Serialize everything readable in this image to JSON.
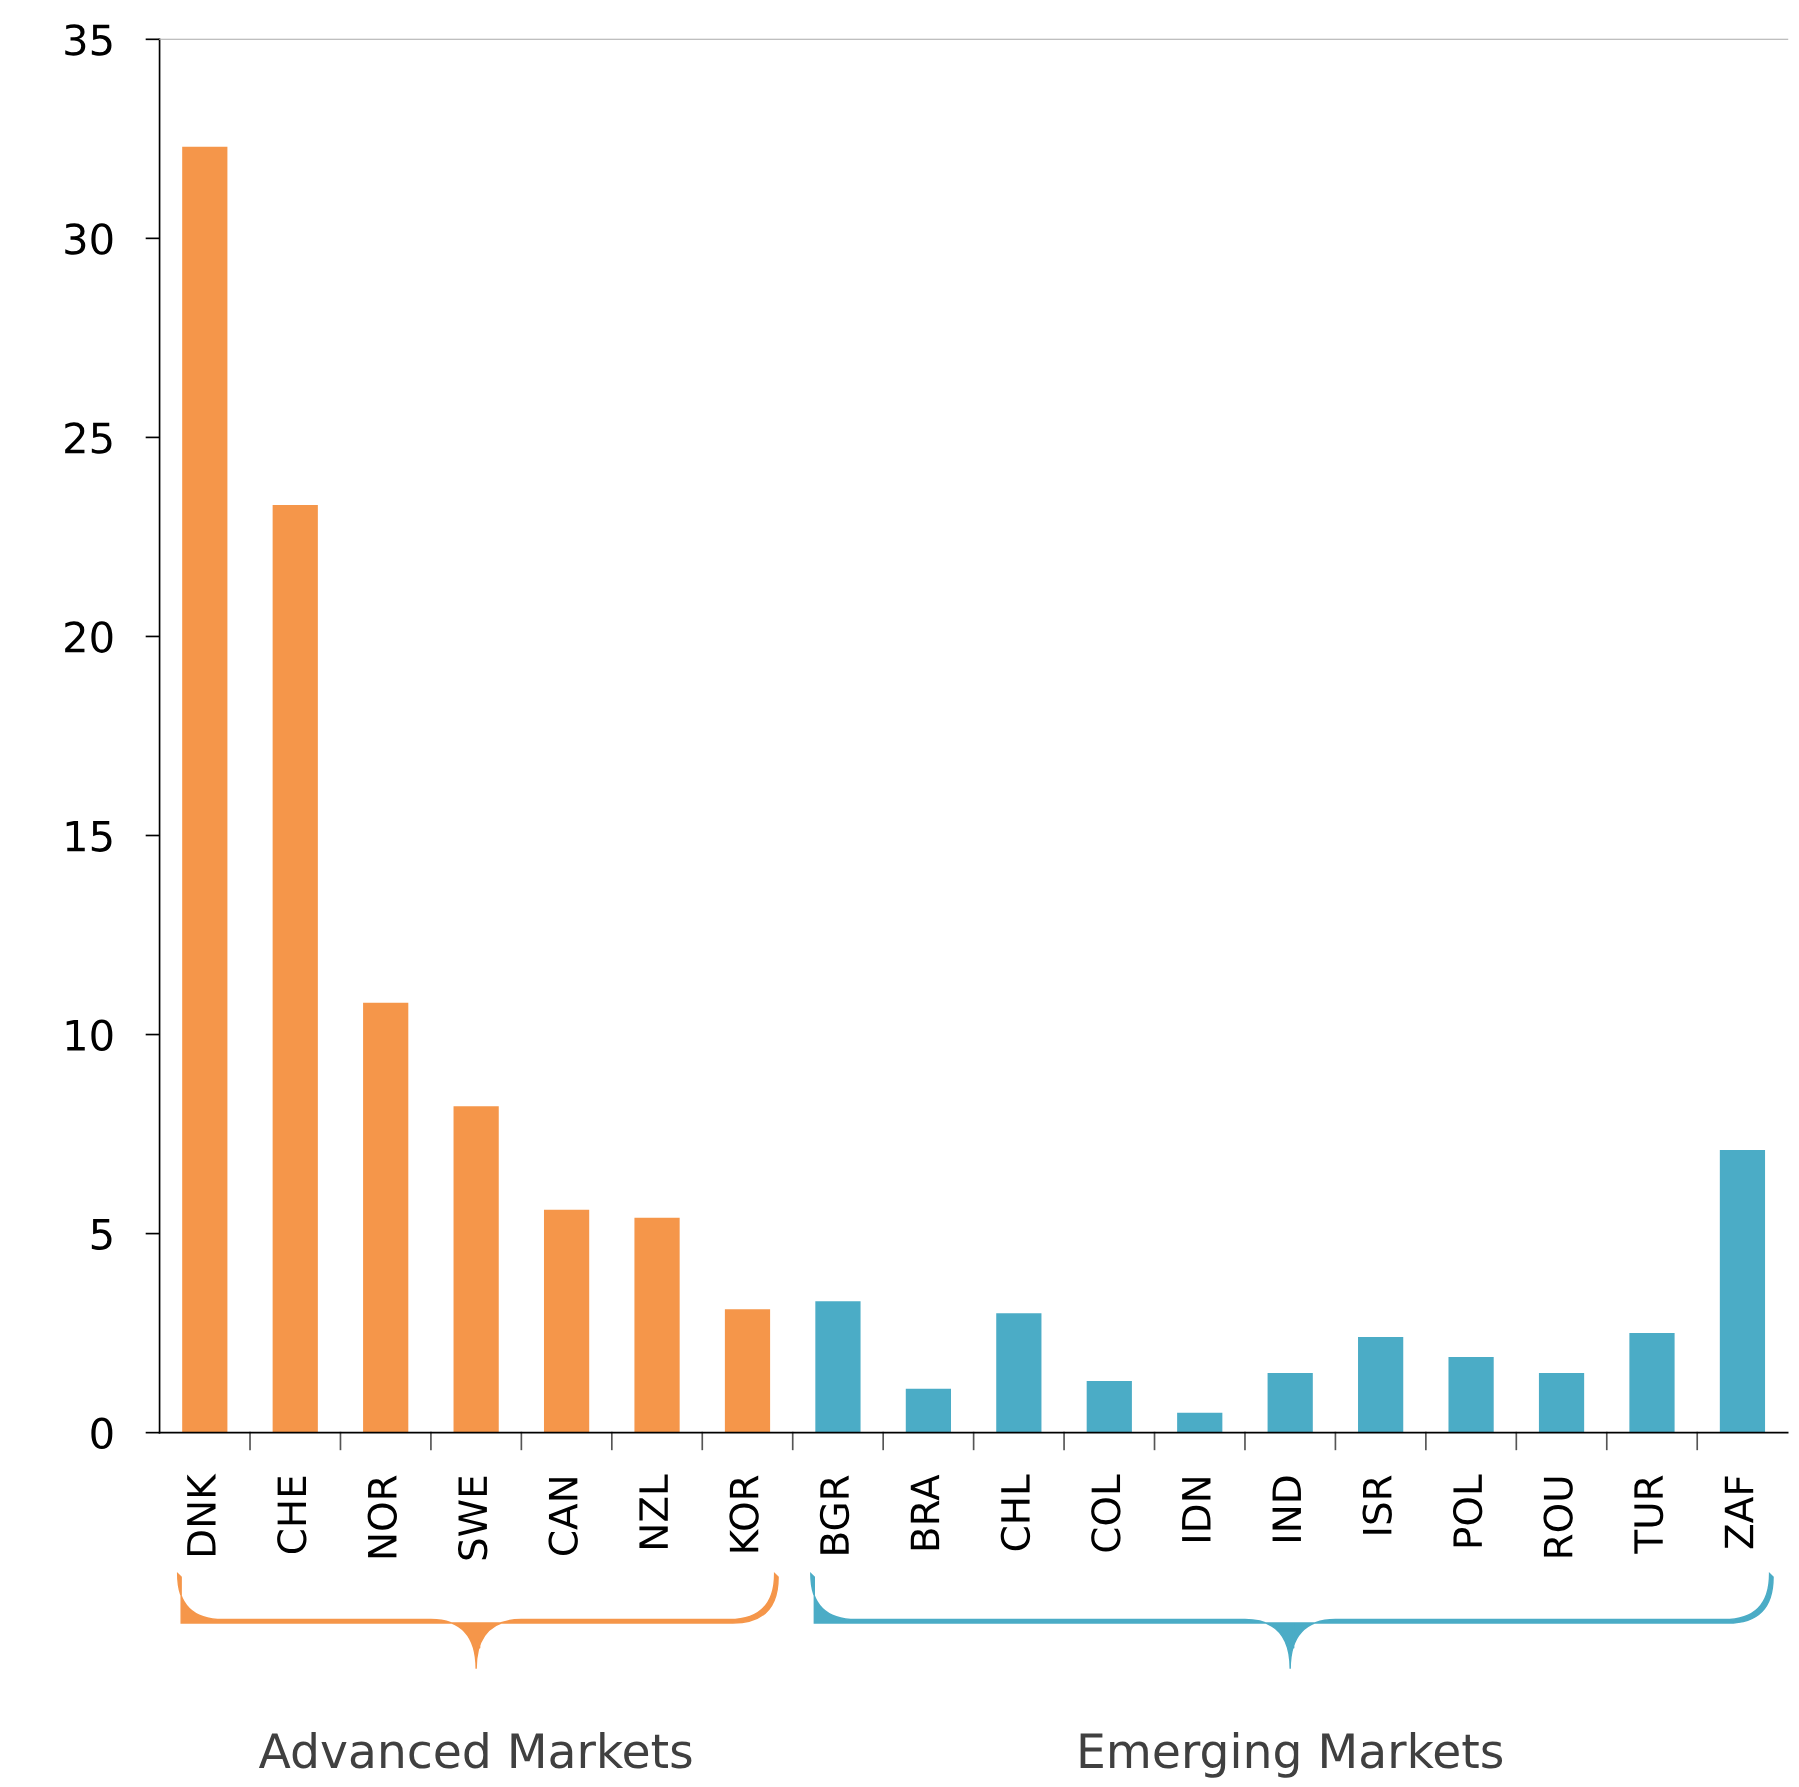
{
  "chart_data": {
    "type": "bar",
    "categories": [
      "DNK",
      "CHE",
      "NOR",
      "SWE",
      "CAN",
      "NZL",
      "KOR",
      "BGR",
      "BRA",
      "CHL",
      "COL",
      "IDN",
      "IND",
      "ISR",
      "POL",
      "ROU",
      "TUR",
      "ZAF"
    ],
    "values": [
      32.3,
      23.3,
      10.8,
      8.2,
      5.6,
      5.4,
      3.1,
      3.3,
      1.1,
      3.0,
      1.3,
      0.5,
      1.5,
      2.4,
      1.9,
      1.5,
      2.5,
      7.1
    ],
    "colors": [
      "#f5964a",
      "#f5964a",
      "#f5964a",
      "#f5964a",
      "#f5964a",
      "#f5964a",
      "#f5964a",
      "#4bacc6",
      "#4bacc6",
      "#4bacc6",
      "#4bacc6",
      "#4bacc6",
      "#4bacc6",
      "#4bacc6",
      "#4bacc6",
      "#4bacc6",
      "#4bacc6",
      "#4bacc6"
    ],
    "ylim": [
      0,
      35
    ],
    "yticks": [
      0,
      5,
      10,
      15,
      20,
      25,
      30,
      35
    ],
    "grid": false,
    "legend": false,
    "annotations": [
      "Advanced Markets",
      "Emerging Markets"
    ]
  }
}
